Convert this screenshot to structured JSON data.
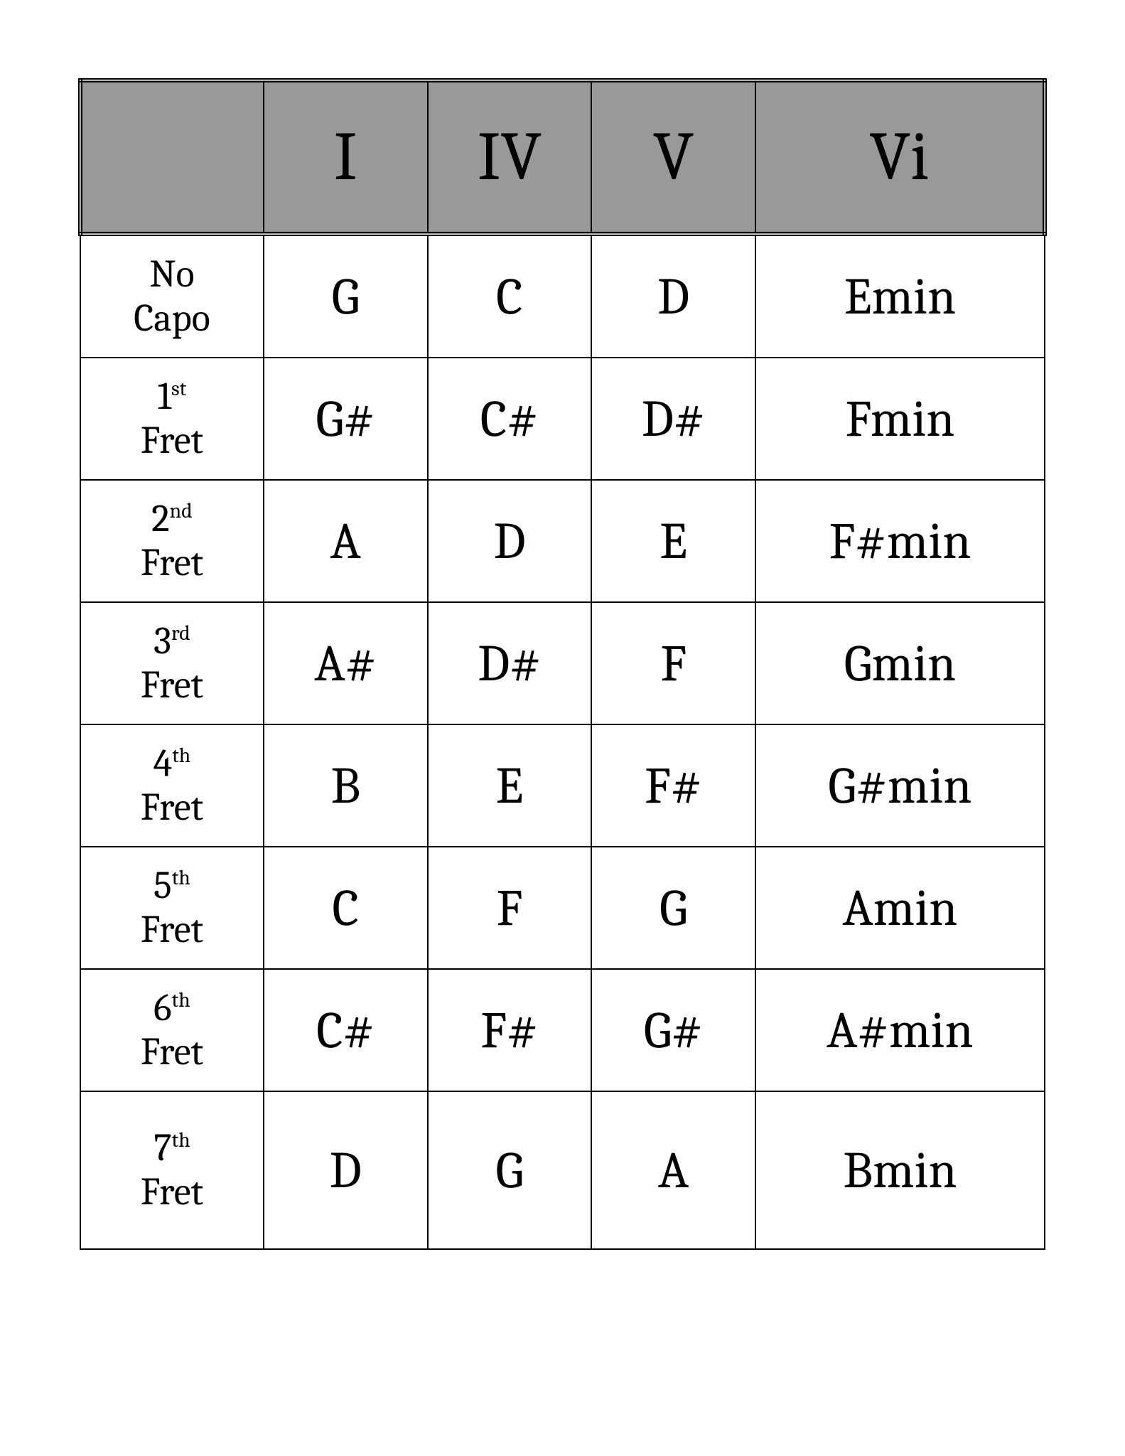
{
  "table": {
    "type": "table",
    "background_color": "#ffffff",
    "header_background": "#999999",
    "border_color": "#000000",
    "header_font_size_pt": 72,
    "body_font_size_pt": 54,
    "label_font_size_pt": 40,
    "font_family": "Cambria, Times New Roman, serif",
    "columns": [
      "",
      "I",
      "IV",
      "V",
      "Vi"
    ],
    "column_widths_pct": [
      19,
      17,
      17,
      17,
      30
    ],
    "rows": [
      {
        "label_top": "No",
        "label_sup": "",
        "label_bottom": "Capo",
        "cells": [
          "G",
          "C",
          "D",
          "Emin"
        ]
      },
      {
        "label_top": "1",
        "label_sup": "st",
        "label_bottom": "Fret",
        "cells": [
          "G#",
          "C#",
          "D#",
          "Fmin"
        ]
      },
      {
        "label_top": "2",
        "label_sup": "nd",
        "label_bottom": "Fret",
        "cells": [
          "A",
          "D",
          "E",
          "F#min"
        ]
      },
      {
        "label_top": "3",
        "label_sup": "rd",
        "label_bottom": "Fret",
        "cells": [
          "A#",
          "D#",
          "F",
          "Gmin"
        ]
      },
      {
        "label_top": "4",
        "label_sup": "th",
        "label_bottom": "Fret",
        "cells": [
          "B",
          "E",
          "F#",
          "G#min"
        ]
      },
      {
        "label_top": "5",
        "label_sup": "th",
        "label_bottom": "Fret",
        "cells": [
          "C",
          "F",
          "G",
          "Amin"
        ]
      },
      {
        "label_top": "6",
        "label_sup": "th",
        "label_bottom": "Fret",
        "cells": [
          "C#",
          "F#",
          "G#",
          "A#min"
        ]
      },
      {
        "label_top": "7",
        "label_sup": "th",
        "label_bottom": "Fret",
        "cells": [
          "D",
          "G",
          "A",
          "Bmin"
        ]
      }
    ]
  }
}
